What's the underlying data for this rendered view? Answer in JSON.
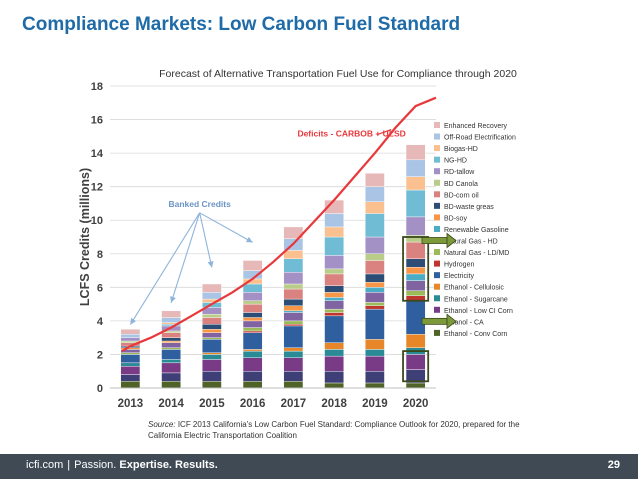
{
  "slide": {
    "title": "Compliance Markets: Low Carbon Fuel Standard",
    "source_label": "Source:",
    "source_text": "ICF 2013 California's Low Carbon Fuel Standard: Compliance Outlook for 2020, prepared for the California Electric Transportation Coalition",
    "footer_brand": "icfi.com",
    "footer_sep": "|",
    "footer_passion": "Passion.",
    "footer_rest": "Expertise. Results.",
    "page_number": "29"
  },
  "colors": {
    "title": "#1f6ba8",
    "footer_bg": "#3f4a55",
    "deficit_line": "#e8383b",
    "banked_arrow": "#8fb4dc",
    "highlight_box": "#3a4a1c"
  },
  "chart_data": {
    "type": "bar",
    "stacked": true,
    "title": "Forecast of Alternative Transportation Fuel Use for Compliance through 2020",
    "ylabel": "LCFS Credits (millions)",
    "xlabel": "",
    "ylim": [
      0,
      18
    ],
    "yticks": [
      0,
      2,
      4,
      6,
      8,
      10,
      12,
      14,
      16,
      18
    ],
    "categories": [
      "2013",
      "2014",
      "2015",
      "2016",
      "2017",
      "2018",
      "2019",
      "2020"
    ],
    "series": [
      {
        "name": "Ethanol - Conv Corn",
        "color": "#4f6228",
        "values": [
          0.4,
          0.4,
          0.4,
          0.4,
          0.4,
          0.3,
          0.3,
          0.3
        ]
      },
      {
        "name": "Ethanol - CA",
        "color": "#3f3f78",
        "values": [
          0.4,
          0.5,
          0.6,
          0.6,
          0.6,
          0.7,
          0.7,
          0.8
        ]
      },
      {
        "name": "Ethanol - Low CI Corn",
        "color": "#7a3b86",
        "values": [
          0.5,
          0.6,
          0.7,
          0.8,
          0.8,
          0.9,
          0.9,
          0.9
        ]
      },
      {
        "name": "Ethanol - Sugarcane",
        "color": "#2a8a96",
        "values": [
          0.2,
          0.2,
          0.3,
          0.4,
          0.4,
          0.4,
          0.4,
          0.4
        ]
      },
      {
        "name": "Ethanol - Cellulosic",
        "color": "#e7872a",
        "values": [
          0.0,
          0.0,
          0.1,
          0.1,
          0.2,
          0.4,
          0.6,
          0.8
        ]
      },
      {
        "name": "Electricity",
        "color": "#2f5f9e",
        "values": [
          0.5,
          0.6,
          0.8,
          1.0,
          1.3,
          1.6,
          1.8,
          2.0
        ]
      },
      {
        "name": "Hydrogen",
        "color": "#c0362f",
        "values": [
          0.0,
          0.0,
          0.0,
          0.1,
          0.1,
          0.2,
          0.2,
          0.3
        ]
      },
      {
        "name": "Natural Gas - LD/MD",
        "color": "#9bbb59",
        "values": [
          0.1,
          0.1,
          0.1,
          0.2,
          0.2,
          0.2,
          0.2,
          0.3
        ]
      },
      {
        "name": "Natural Gas - HD",
        "color": "#8064a2",
        "values": [
          0.2,
          0.3,
          0.3,
          0.4,
          0.5,
          0.5,
          0.6,
          0.6
        ]
      },
      {
        "name": "Renewable Gasoline",
        "color": "#4bacc6",
        "values": [
          0.0,
          0.0,
          0.0,
          0.0,
          0.1,
          0.2,
          0.3,
          0.4
        ]
      },
      {
        "name": "BD-soy",
        "color": "#f79646",
        "values": [
          0.1,
          0.1,
          0.2,
          0.2,
          0.3,
          0.3,
          0.3,
          0.4
        ]
      },
      {
        "name": "BD-waste greas",
        "color": "#2c4d75",
        "values": [
          0.1,
          0.2,
          0.3,
          0.3,
          0.4,
          0.4,
          0.5,
          0.5
        ]
      },
      {
        "name": "BD-corn oil",
        "color": "#d9827f",
        "values": [
          0.2,
          0.3,
          0.4,
          0.5,
          0.6,
          0.7,
          0.8,
          1.0
        ]
      },
      {
        "name": "BD Canola",
        "color": "#b9cc8a",
        "values": [
          0.1,
          0.1,
          0.2,
          0.2,
          0.3,
          0.3,
          0.4,
          0.4
        ]
      },
      {
        "name": "RD-tallow",
        "color": "#a391c5",
        "values": [
          0.2,
          0.3,
          0.4,
          0.5,
          0.7,
          0.8,
          1.0,
          1.1
        ]
      },
      {
        "name": "NG-HD",
        "color": "#6fbcd4",
        "values": [
          0.0,
          0.1,
          0.3,
          0.5,
          0.8,
          1.1,
          1.4,
          1.6
        ]
      },
      {
        "name": "Biogas-HD",
        "color": "#fac08f",
        "values": [
          0.0,
          0.1,
          0.2,
          0.3,
          0.5,
          0.6,
          0.7,
          0.8
        ]
      },
      {
        "name": "Off-Road Electrification",
        "color": "#a9c4e4",
        "values": [
          0.2,
          0.3,
          0.4,
          0.5,
          0.7,
          0.8,
          0.9,
          1.0
        ]
      },
      {
        "name": "Enhanced Recovery",
        "color": "#e6b9b8",
        "values": [
          0.3,
          0.4,
          0.5,
          0.6,
          0.7,
          0.8,
          0.8,
          0.9
        ]
      }
    ],
    "deficits": {
      "name": "Deficits - CARBOB + ULSD",
      "x": [
        2012.8,
        2013,
        2013.5,
        2014,
        2014.5,
        2015,
        2015.5,
        2016,
        2016.5,
        2017,
        2017.5,
        2018,
        2018.5,
        2019,
        2019.5,
        2020,
        2020.5
      ],
      "y": [
        2.2,
        2.5,
        3.0,
        3.6,
        4.3,
        5.0,
        5.7,
        6.5,
        7.5,
        8.6,
        9.9,
        11.2,
        12.6,
        14.0,
        15.5,
        16.8,
        17.3
      ]
    },
    "annotations": {
      "banked_credits": "Banked Credits",
      "banked_points": [
        [
          2013,
          3.6
        ],
        [
          2014,
          4.9
        ],
        [
          2015,
          7.0
        ],
        [
          2016,
          8.5
        ]
      ],
      "banked_label_at": [
        2014.7,
        10.8
      ],
      "highlight_ranges": [
        {
          "year": "2020",
          "from": 5.2,
          "to": 9.0
        },
        {
          "year": "2020",
          "from": 0.4,
          "to": 2.2
        }
      ],
      "arrows": [
        "upper",
        "lower"
      ]
    }
  }
}
